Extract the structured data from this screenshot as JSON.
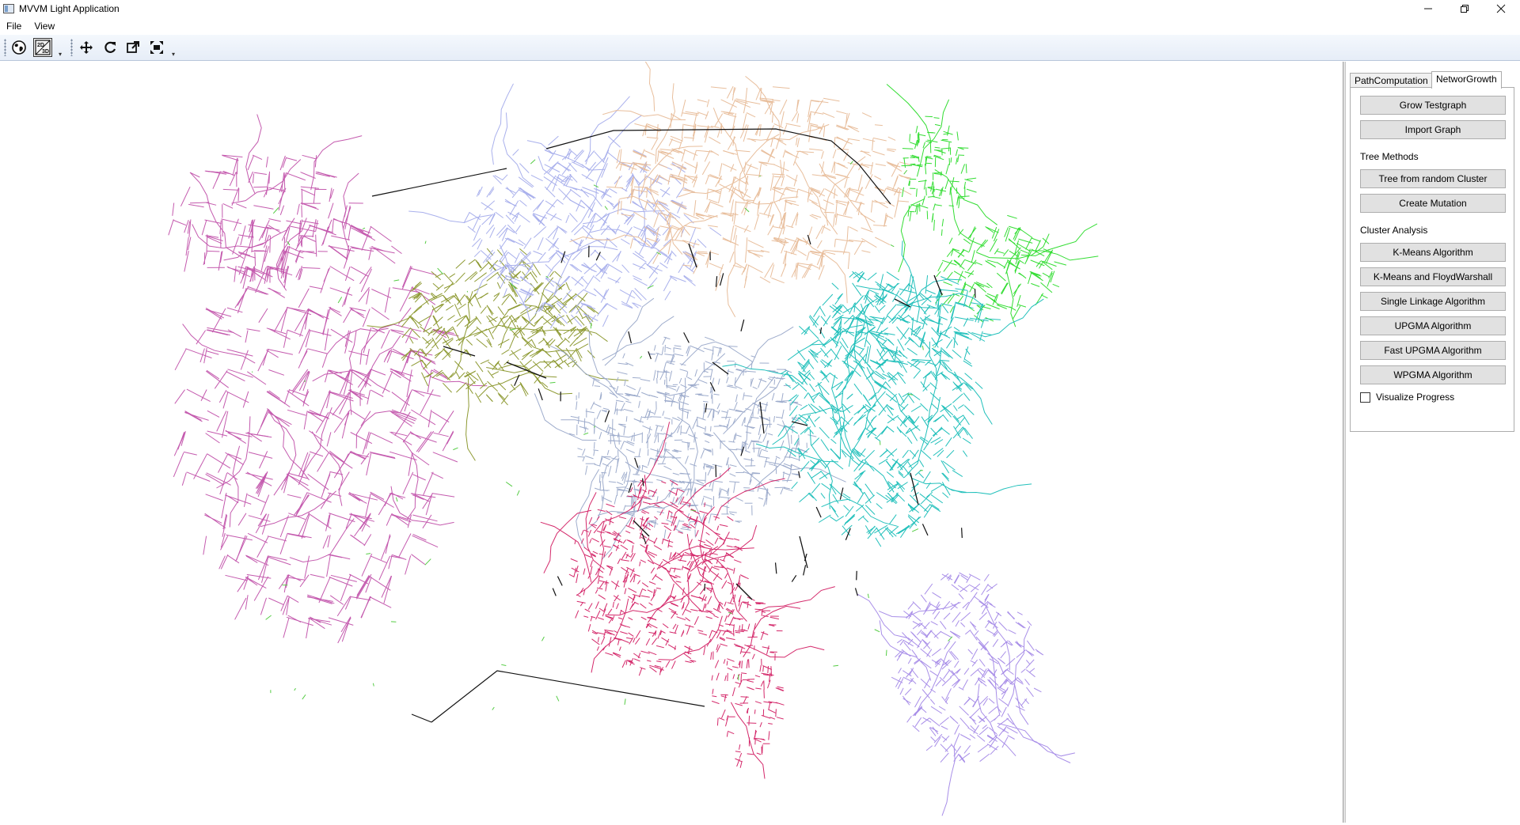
{
  "window": {
    "title": "MVVM Light Application"
  },
  "menu": [
    "File",
    "View"
  ],
  "toolbar": {
    "icons": [
      "globe-icon",
      "2d-3d-toggle-icon",
      "pan-icon",
      "refresh-icon",
      "external-link-icon",
      "fit-extent-icon"
    ],
    "toggle_label_top": "2D",
    "toggle_label_bottom": "3D"
  },
  "panel": {
    "tabs": [
      "PathComputation",
      "NetworGrowth"
    ],
    "active_tab": "NetworGrowth",
    "buttons_top": [
      "Grow Testgraph",
      "Import Graph"
    ],
    "tree_methods_label": "Tree Methods",
    "tree_buttons": [
      "Tree from random Cluster",
      "Create Mutation"
    ],
    "cluster_label": "Cluster Analysis",
    "cluster_buttons": [
      "K-Means Algorithm",
      "K-Means and FloydWarshall",
      "Single Linkage Algorithm",
      "UPGMA Algorithm",
      "Fast UPGMA Algorithm",
      "WPGMA Algorithm"
    ],
    "visualize_label": "Visualize Progress",
    "visualize_checked": false
  },
  "map": {
    "cluster_colors": {
      "magenta": "#c45aae",
      "olive": "#8e9a33",
      "lavender": "#a9b0ec",
      "peach": "#e8be9c",
      "green": "#33dd33",
      "cyan": "#22c0bb",
      "slate": "#9eaccc",
      "crimson": "#d4286a",
      "violet": "#a88ee8",
      "boundary": "#111111",
      "accent": "#55cc44"
    }
  }
}
